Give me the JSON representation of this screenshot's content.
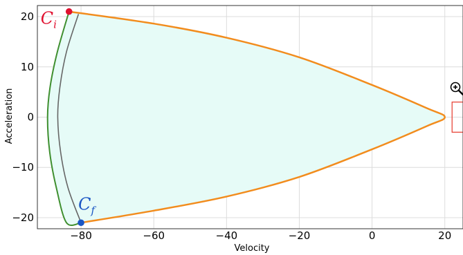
{
  "chart_data": {
    "type": "line",
    "xlabel": "Velocity",
    "ylabel": "Acceleration",
    "xlim": [
      -92,
      25
    ],
    "ylim": [
      -22.2,
      22.2
    ],
    "xticks": [
      -80,
      -60,
      -40,
      -20,
      0,
      20
    ],
    "yticks": [
      -20,
      -10,
      0,
      10,
      20
    ],
    "grid": true,
    "colors": {
      "fill": "#e6fbf7",
      "orange": "#f28c1d",
      "green": "#3f8f2f",
      "gray": "#666666",
      "ci": "#e0102f",
      "cf": "#1a56c4",
      "zoom_box": "#e8463a",
      "axes": "#333333",
      "grid": "#dcdcdc"
    },
    "series": [
      {
        "key": "orange",
        "points": [
          [
            -83.3,
            21
          ],
          [
            -60,
            18.6
          ],
          [
            -40,
            15.8
          ],
          [
            -20,
            11.9
          ],
          [
            0,
            6.4
          ],
          [
            15,
            1.8
          ],
          [
            20,
            0
          ],
          [
            15,
            -1.8
          ],
          [
            0,
            -6.4
          ],
          [
            -20,
            -11.9
          ],
          [
            -40,
            -15.8
          ],
          [
            -60,
            -18.6
          ],
          [
            -80,
            -21
          ]
        ]
      },
      {
        "key": "green",
        "points": [
          [
            -83.3,
            21
          ],
          [
            -86.5,
            13
          ],
          [
            -88.5,
            6
          ],
          [
            -89.2,
            0
          ],
          [
            -88.6,
            -7
          ],
          [
            -86.8,
            -14
          ],
          [
            -84,
            -21
          ],
          [
            -80,
            -21
          ]
        ]
      },
      {
        "key": "gray",
        "points": [
          [
            -80.7,
            20.5
          ],
          [
            -84,
            13
          ],
          [
            -85.8,
            6
          ],
          [
            -86.4,
            0
          ],
          [
            -85.6,
            -7
          ],
          [
            -83.6,
            -14
          ],
          [
            -80,
            -21
          ]
        ]
      }
    ],
    "points": [
      {
        "label": "C",
        "sub": "i",
        "x": -83.3,
        "y": 21,
        "color_key": "ci"
      },
      {
        "label": "C",
        "sub": "f",
        "x": -80,
        "y": -21,
        "color_key": "cf"
      }
    ],
    "zoom_region": {
      "x": [
        22,
        25
      ],
      "y": [
        -3,
        3
      ]
    },
    "icons": [
      "zoom-in-icon"
    ]
  }
}
